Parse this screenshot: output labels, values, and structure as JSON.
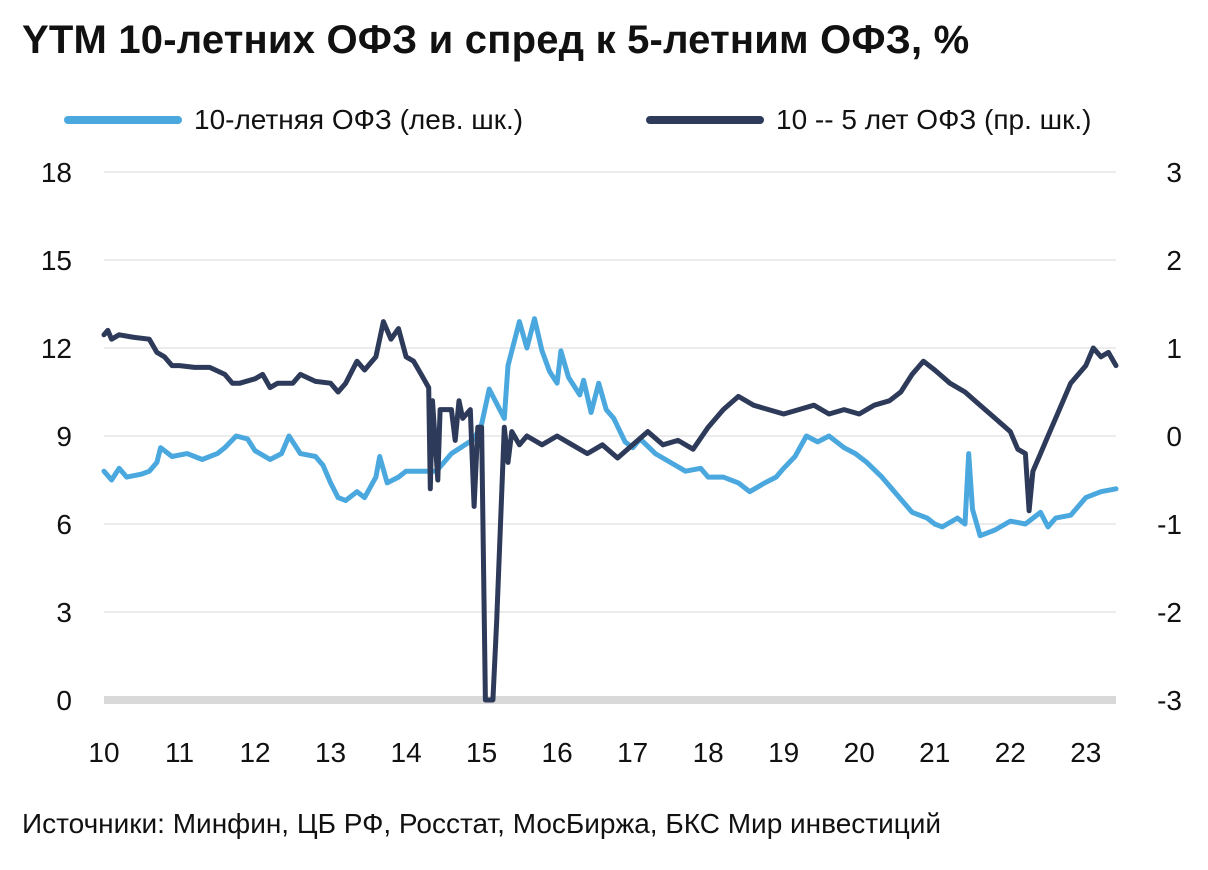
{
  "title": "YTM 10-летних ОФЗ и спред к 5-летним ОФЗ, %",
  "source": "Источники: Минфин, ЦБ РФ, Росстат, МосБиржа, БКС Мир инвестиций",
  "chart_data": {
    "type": "line",
    "title": "YTM 10-летних ОФЗ и спред к 5-летним ОФЗ, %",
    "x_ticks": [
      "10",
      "11",
      "12",
      "13",
      "14",
      "15",
      "16",
      "17",
      "18",
      "19",
      "20",
      "21",
      "22",
      "23"
    ],
    "x_range": [
      2010.0,
      2023.4
    ],
    "y_left": {
      "ticks": [
        0,
        3,
        6,
        9,
        12,
        15,
        18
      ],
      "range": [
        0,
        18
      ]
    },
    "y_right": {
      "ticks": [
        -3,
        -2,
        -1,
        0,
        1,
        2,
        3
      ],
      "range": [
        -3,
        3
      ]
    },
    "grid": "horizontal",
    "legend_position": "top",
    "series": [
      {
        "name": "10-летняя ОФЗ (лев. шк.)",
        "axis": "left",
        "color": "#4aa8df",
        "points": [
          [
            2010.0,
            7.8
          ],
          [
            2010.1,
            7.5
          ],
          [
            2010.2,
            7.9
          ],
          [
            2010.3,
            7.6
          ],
          [
            2010.5,
            7.7
          ],
          [
            2010.6,
            7.8
          ],
          [
            2010.7,
            8.1
          ],
          [
            2010.75,
            8.6
          ],
          [
            2010.9,
            8.3
          ],
          [
            2011.1,
            8.4
          ],
          [
            2011.3,
            8.2
          ],
          [
            2011.5,
            8.4
          ],
          [
            2011.6,
            8.6
          ],
          [
            2011.75,
            9.0
          ],
          [
            2011.9,
            8.9
          ],
          [
            2012.0,
            8.5
          ],
          [
            2012.2,
            8.2
          ],
          [
            2012.35,
            8.4
          ],
          [
            2012.45,
            9.0
          ],
          [
            2012.6,
            8.4
          ],
          [
            2012.8,
            8.3
          ],
          [
            2012.9,
            8.0
          ],
          [
            2013.0,
            7.4
          ],
          [
            2013.1,
            6.9
          ],
          [
            2013.2,
            6.8
          ],
          [
            2013.35,
            7.1
          ],
          [
            2013.45,
            6.9
          ],
          [
            2013.6,
            7.6
          ],
          [
            2013.65,
            8.3
          ],
          [
            2013.75,
            7.4
          ],
          [
            2013.9,
            7.6
          ],
          [
            2014.0,
            7.8
          ],
          [
            2014.4,
            7.8
          ],
          [
            2014.6,
            8.4
          ],
          [
            2014.9,
            8.9
          ],
          [
            2015.0,
            9.4
          ],
          [
            2015.1,
            10.6
          ],
          [
            2015.3,
            9.6
          ],
          [
            2015.35,
            11.4
          ],
          [
            2015.5,
            12.9
          ],
          [
            2015.6,
            12.0
          ],
          [
            2015.7,
            13.0
          ],
          [
            2015.8,
            11.9
          ],
          [
            2015.9,
            11.2
          ],
          [
            2016.0,
            10.8
          ],
          [
            2016.05,
            11.9
          ],
          [
            2016.15,
            11.0
          ],
          [
            2016.3,
            10.4
          ],
          [
            2016.35,
            10.9
          ],
          [
            2016.45,
            9.8
          ],
          [
            2016.55,
            10.8
          ],
          [
            2016.65,
            9.9
          ],
          [
            2016.75,
            9.6
          ],
          [
            2016.9,
            8.8
          ],
          [
            2017.0,
            8.6
          ],
          [
            2017.1,
            8.9
          ],
          [
            2017.3,
            8.4
          ],
          [
            2017.5,
            8.1
          ],
          [
            2017.7,
            7.8
          ],
          [
            2017.9,
            7.9
          ],
          [
            2018.0,
            7.6
          ],
          [
            2018.2,
            7.6
          ],
          [
            2018.4,
            7.4
          ],
          [
            2018.55,
            7.1
          ],
          [
            2018.75,
            7.4
          ],
          [
            2018.9,
            7.6
          ],
          [
            2019.0,
            7.9
          ],
          [
            2019.15,
            8.3
          ],
          [
            2019.3,
            9.0
          ],
          [
            2019.45,
            8.8
          ],
          [
            2019.6,
            9.0
          ],
          [
            2019.8,
            8.6
          ],
          [
            2019.95,
            8.4
          ],
          [
            2020.1,
            8.1
          ],
          [
            2020.3,
            7.6
          ],
          [
            2020.5,
            7.0
          ],
          [
            2020.7,
            6.4
          ],
          [
            2020.9,
            6.2
          ],
          [
            2021.0,
            6.0
          ],
          [
            2021.1,
            5.9
          ],
          [
            2021.3,
            6.2
          ],
          [
            2021.4,
            6.0
          ],
          [
            2021.45,
            8.4
          ],
          [
            2021.5,
            6.5
          ],
          [
            2021.6,
            5.6
          ],
          [
            2021.8,
            5.8
          ],
          [
            2022.0,
            6.1
          ],
          [
            2022.2,
            6.0
          ],
          [
            2022.4,
            6.4
          ],
          [
            2022.5,
            5.9
          ],
          [
            2022.6,
            6.2
          ],
          [
            2022.8,
            6.3
          ],
          [
            2023.0,
            6.9
          ],
          [
            2023.2,
            7.1
          ],
          [
            2023.4,
            7.2
          ]
        ]
      },
      {
        "name": "10 -- 5 лет ОФЗ (пр. шк.)",
        "axis": "right",
        "color": "#2e3a59",
        "points": [
          [
            2010.0,
            1.15
          ],
          [
            2010.05,
            1.2
          ],
          [
            2010.1,
            1.1
          ],
          [
            2010.2,
            1.15
          ],
          [
            2010.4,
            1.12
          ],
          [
            2010.6,
            1.1
          ],
          [
            2010.7,
            0.95
          ],
          [
            2010.8,
            0.9
          ],
          [
            2010.9,
            0.8
          ],
          [
            2011.0,
            0.8
          ],
          [
            2011.2,
            0.78
          ],
          [
            2011.4,
            0.78
          ],
          [
            2011.5,
            0.74
          ],
          [
            2011.6,
            0.7
          ],
          [
            2011.7,
            0.6
          ],
          [
            2011.8,
            0.6
          ],
          [
            2012.0,
            0.65
          ],
          [
            2012.1,
            0.7
          ],
          [
            2012.2,
            0.55
          ],
          [
            2012.3,
            0.6
          ],
          [
            2012.5,
            0.6
          ],
          [
            2012.6,
            0.7
          ],
          [
            2012.8,
            0.62
          ],
          [
            2013.0,
            0.6
          ],
          [
            2013.1,
            0.5
          ],
          [
            2013.2,
            0.6
          ],
          [
            2013.35,
            0.85
          ],
          [
            2013.45,
            0.75
          ],
          [
            2013.6,
            0.9
          ],
          [
            2013.7,
            1.3
          ],
          [
            2013.8,
            1.1
          ],
          [
            2013.9,
            1.22
          ],
          [
            2014.0,
            0.9
          ],
          [
            2014.1,
            0.85
          ],
          [
            2014.2,
            0.7
          ],
          [
            2014.3,
            0.55
          ],
          [
            2014.32,
            -0.6
          ],
          [
            2014.35,
            0.4
          ],
          [
            2014.42,
            -0.5
          ],
          [
            2014.45,
            0.3
          ],
          [
            2014.6,
            0.3
          ],
          [
            2014.65,
            -0.05
          ],
          [
            2014.7,
            0.4
          ],
          [
            2014.75,
            0.2
          ],
          [
            2014.85,
            0.3
          ],
          [
            2014.9,
            -0.8
          ],
          [
            2014.95,
            0.1
          ],
          [
            2015.0,
            0.1
          ],
          [
            2015.05,
            -3.0
          ],
          [
            2015.15,
            -3.0
          ],
          [
            2015.2,
            -2.1
          ],
          [
            2015.25,
            -1.0
          ],
          [
            2015.3,
            0.1
          ],
          [
            2015.35,
            -0.3
          ],
          [
            2015.4,
            0.05
          ],
          [
            2015.5,
            -0.1
          ],
          [
            2015.6,
            0.0
          ],
          [
            2015.8,
            -0.1
          ],
          [
            2016.0,
            0.0
          ],
          [
            2016.2,
            -0.1
          ],
          [
            2016.4,
            -0.2
          ],
          [
            2016.6,
            -0.1
          ],
          [
            2016.8,
            -0.25
          ],
          [
            2017.0,
            -0.1
          ],
          [
            2017.2,
            0.05
          ],
          [
            2017.4,
            -0.1
          ],
          [
            2017.6,
            -0.05
          ],
          [
            2017.8,
            -0.15
          ],
          [
            2018.0,
            0.1
          ],
          [
            2018.2,
            0.3
          ],
          [
            2018.4,
            0.45
          ],
          [
            2018.6,
            0.35
          ],
          [
            2018.8,
            0.3
          ],
          [
            2019.0,
            0.25
          ],
          [
            2019.2,
            0.3
          ],
          [
            2019.4,
            0.35
          ],
          [
            2019.6,
            0.25
          ],
          [
            2019.8,
            0.3
          ],
          [
            2020.0,
            0.25
          ],
          [
            2020.2,
            0.35
          ],
          [
            2020.4,
            0.4
          ],
          [
            2020.55,
            0.5
          ],
          [
            2020.7,
            0.7
          ],
          [
            2020.85,
            0.85
          ],
          [
            2021.0,
            0.75
          ],
          [
            2021.2,
            0.6
          ],
          [
            2021.4,
            0.5
          ],
          [
            2021.6,
            0.35
          ],
          [
            2021.8,
            0.2
          ],
          [
            2022.0,
            0.05
          ],
          [
            2022.1,
            -0.15
          ],
          [
            2022.2,
            -0.2
          ],
          [
            2022.25,
            -0.85
          ],
          [
            2022.3,
            -0.4
          ],
          [
            2022.4,
            -0.2
          ],
          [
            2022.5,
            0.0
          ],
          [
            2022.6,
            0.2
          ],
          [
            2022.8,
            0.6
          ],
          [
            2023.0,
            0.8
          ],
          [
            2023.1,
            1.0
          ],
          [
            2023.2,
            0.9
          ],
          [
            2023.3,
            0.95
          ],
          [
            2023.4,
            0.8
          ]
        ]
      }
    ]
  }
}
